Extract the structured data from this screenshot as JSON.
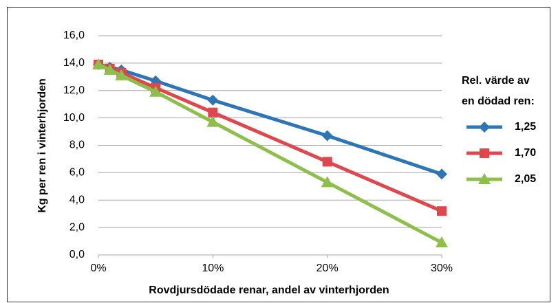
{
  "chart_data": {
    "type": "line",
    "xlabel": "Rovdjursdödade renar, andel av vinterhjorden",
    "ylabel": "Kg per ren i vinterhjorden",
    "legend_title": [
      "Rel. värde av",
      "en dödad ren:"
    ],
    "legend": "right",
    "grid": true,
    "x": [
      0,
      1,
      2,
      5,
      10,
      20,
      30
    ],
    "xlim": [
      0,
      30
    ],
    "xticks": [
      {
        "value": 0,
        "label": "0%"
      },
      {
        "value": 10,
        "label": "10%"
      },
      {
        "value": 20,
        "label": "20%"
      },
      {
        "value": 30,
        "label": "30%"
      }
    ],
    "ylim": [
      0,
      16
    ],
    "yticks": [
      {
        "value": 0,
        "label": "0,0"
      },
      {
        "value": 2,
        "label": "2,0"
      },
      {
        "value": 4,
        "label": "4,0"
      },
      {
        "value": 6,
        "label": "6,0"
      },
      {
        "value": 8,
        "label": "8,0"
      },
      {
        "value": 10,
        "label": "10,0"
      },
      {
        "value": 12,
        "label": "12,0"
      },
      {
        "value": 14,
        "label": "14,0"
      },
      {
        "value": 16,
        "label": "16,0"
      }
    ],
    "series": [
      {
        "name": "1,25",
        "color": "#2e75b6",
        "marker": "diamond",
        "values": [
          13.9,
          13.7,
          13.5,
          12.7,
          11.3,
          8.7,
          5.9
        ]
      },
      {
        "name": "1,70",
        "color": "#e0474c",
        "marker": "square",
        "values": [
          13.9,
          13.6,
          13.3,
          12.2,
          10.4,
          6.8,
          3.2
        ]
      },
      {
        "name": "2,05",
        "color": "#8cc04a",
        "marker": "triangle",
        "values": [
          13.9,
          13.5,
          13.1,
          11.9,
          9.7,
          5.3,
          0.9
        ]
      }
    ]
  }
}
